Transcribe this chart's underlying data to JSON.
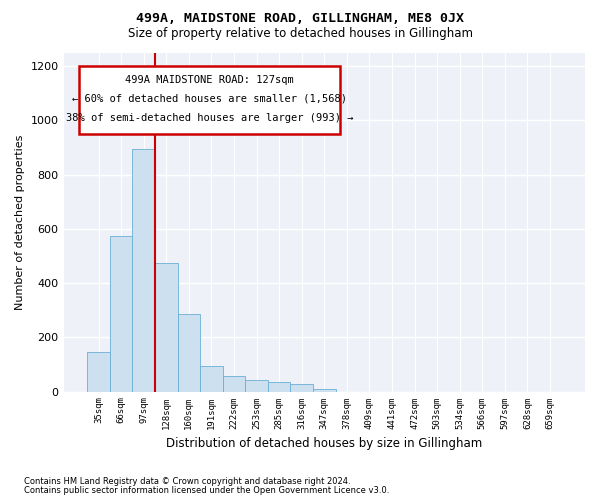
{
  "title": "499A, MAIDSTONE ROAD, GILLINGHAM, ME8 0JX",
  "subtitle": "Size of property relative to detached houses in Gillingham",
  "xlabel": "Distribution of detached houses by size in Gillingham",
  "ylabel": "Number of detached properties",
  "footer_line1": "Contains HM Land Registry data © Crown copyright and database right 2024.",
  "footer_line2": "Contains public sector information licensed under the Open Government Licence v3.0.",
  "annotation_line1": "499A MAIDSTONE ROAD: 127sqm",
  "annotation_line2": "← 60% of detached houses are smaller (1,568)",
  "annotation_line3": "38% of semi-detached houses are larger (993) →",
  "bar_color": "#cce0f0",
  "bar_edge_color": "#6baed6",
  "ref_line_color": "#cc0000",
  "annotation_box_color": "#cc0000",
  "background_color": "#eef2f8",
  "categories": [
    "35sqm",
    "66sqm",
    "97sqm",
    "128sqm",
    "160sqm",
    "191sqm",
    "222sqm",
    "253sqm",
    "285sqm",
    "316sqm",
    "347sqm",
    "378sqm",
    "409sqm",
    "441sqm",
    "472sqm",
    "503sqm",
    "534sqm",
    "566sqm",
    "597sqm",
    "628sqm",
    "659sqm"
  ],
  "values": [
    145,
    575,
    893,
    475,
    285,
    93,
    57,
    42,
    35,
    28,
    10,
    0,
    0,
    0,
    0,
    0,
    0,
    0,
    0,
    0,
    0
  ],
  "ylim": [
    0,
    1250
  ],
  "yticks": [
    0,
    200,
    400,
    600,
    800,
    1000,
    1200
  ],
  "ref_bar_index": 3
}
